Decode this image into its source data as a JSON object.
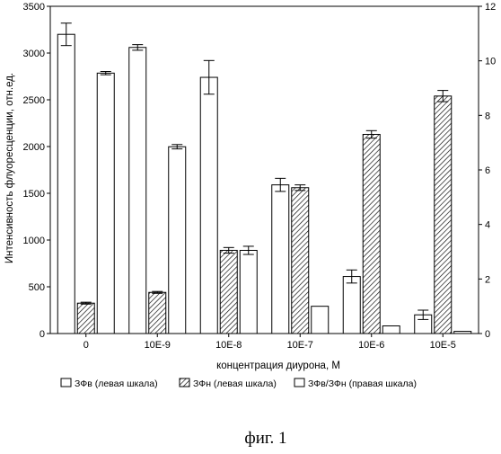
{
  "chart_data": {
    "type": "bar",
    "categories": [
      "0",
      "10E-9",
      "10E-8",
      "10E-7",
      "10E-6",
      "10E-5"
    ],
    "xlabel": "концентрация диурона, М",
    "ylabel": "Интенсивность флуоресценции, отн.ед.",
    "ylim": [
      0,
      3500
    ],
    "y_ticks": [
      0,
      500,
      1000,
      1500,
      2000,
      2500,
      3000,
      3500
    ],
    "y2lim": [
      0,
      12
    ],
    "y2_ticks": [
      0,
      2,
      4,
      6,
      8,
      10,
      12
    ],
    "grid": false,
    "legend_position": "bottom",
    "series": [
      {
        "name": "ЗФв (левая шкала)",
        "axis": "left",
        "fill": "white",
        "values": [
          3200,
          3060,
          2740,
          1590,
          610,
          200
        ],
        "errors": [
          120,
          30,
          180,
          70,
          70,
          50
        ]
      },
      {
        "name": "ЗФн (левая шкала)",
        "axis": "left",
        "fill": "hatched",
        "values": [
          325,
          440,
          890,
          1560,
          2130,
          2540
        ],
        "errors": [
          10,
          10,
          30,
          30,
          40,
          60
        ]
      },
      {
        "name": "ЗФв/ЗФн (правая шкала)",
        "axis": "right",
        "fill": "white",
        "values": [
          9.55,
          6.85,
          3.05,
          1.0,
          0.28,
          0.08
        ],
        "errors": [
          0.06,
          0.08,
          0.15,
          0,
          0,
          0
        ]
      }
    ]
  },
  "caption": "фиг. 1"
}
